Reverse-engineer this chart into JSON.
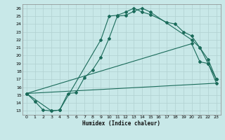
{
  "xlabel": "Humidex (Indice chaleur)",
  "bg_color": "#c8e8e8",
  "line_color": "#1a6b5a",
  "grid_color": "#b0d0d0",
  "xlim": [
    -0.5,
    23.5
  ],
  "ylim": [
    12.5,
    26.5
  ],
  "xticks": [
    0,
    1,
    2,
    3,
    4,
    5,
    6,
    7,
    8,
    9,
    10,
    11,
    12,
    13,
    14,
    15,
    16,
    17,
    18,
    19,
    20,
    21,
    22,
    23
  ],
  "yticks": [
    13,
    14,
    15,
    16,
    17,
    18,
    19,
    20,
    21,
    22,
    23,
    24,
    25,
    26
  ],
  "series0_x": [
    0,
    1,
    2,
    3,
    4,
    5,
    6,
    7,
    8,
    9,
    10,
    11,
    12,
    13,
    14,
    15,
    20,
    21,
    22,
    23
  ],
  "series0_y": [
    15.2,
    14.2,
    13.1,
    13.0,
    13.1,
    15.2,
    15.3,
    17.2,
    18.2,
    19.8,
    22.2,
    25.0,
    25.1,
    25.6,
    26.0,
    25.5,
    22.0,
    21.0,
    19.0,
    16.5
  ],
  "series1_x": [
    0,
    3,
    4,
    9,
    10,
    11,
    12,
    13,
    14,
    15,
    17,
    18,
    19,
    20,
    21,
    22,
    23
  ],
  "series1_y": [
    15.2,
    13.0,
    13.1,
    22.0,
    25.0,
    25.1,
    25.5,
    26.0,
    25.5,
    25.2,
    24.2,
    24.0,
    23.0,
    22.5,
    21.0,
    19.5,
    17.0
  ],
  "series2_x": [
    0,
    23
  ],
  "series2_y": [
    15.2,
    16.5
  ],
  "series3_x": [
    0,
    20,
    21,
    22,
    23
  ],
  "series3_y": [
    15.2,
    21.5,
    19.2,
    19.0,
    17.0
  ]
}
